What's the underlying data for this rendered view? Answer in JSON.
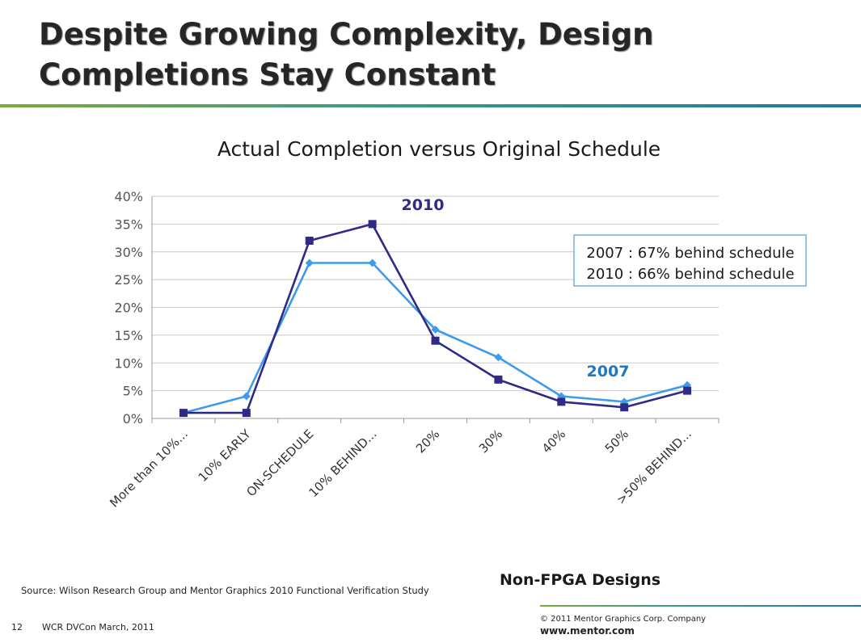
{
  "slide": {
    "title_line1": "Despite Growing Complexity, Design",
    "title_line2": "Completions Stay Constant",
    "source": "Source:  Wilson Research Group and Mentor Graphics 2010 Functional Verification Study",
    "subtitle_note": "Non-FPGA Designs",
    "copyright": "© 2011 Mentor Graphics Corp. Company",
    "website": "www.mentor.com",
    "page_number": "12",
    "conference": "WCR DVCon March, 2011"
  },
  "chart_data": {
    "type": "line",
    "title": "Actual Completion versus Original Schedule",
    "xlabel": "",
    "ylabel": "",
    "categories": [
      "More than 10%...",
      "10% EARLY",
      "ON-SCHEDULE",
      "10% BEHIND...",
      "20%",
      "30%",
      "40%",
      "50%",
      ">50% BEHIND..."
    ],
    "series": [
      {
        "name": "2007",
        "values": [
          1,
          4,
          28,
          28,
          16,
          11,
          4,
          3,
          6
        ],
        "color": "#3d9be9",
        "marker": "diamond"
      },
      {
        "name": "2010",
        "values": [
          1,
          1,
          32,
          35,
          14,
          7,
          3,
          2,
          5
        ],
        "color": "#2e2a85",
        "marker": "square"
      }
    ],
    "ylim": [
      0,
      40
    ],
    "yticks": [
      0,
      5,
      10,
      15,
      20,
      25,
      30,
      35,
      40
    ],
    "ytick_labels": [
      "0%",
      "5%",
      "10%",
      "15%",
      "20%",
      "25%",
      "30%",
      "35%",
      "40%"
    ],
    "grid": true,
    "annotations": [
      "2007 : 67% behind schedule",
      "2010 : 66% behind schedule"
    ]
  }
}
